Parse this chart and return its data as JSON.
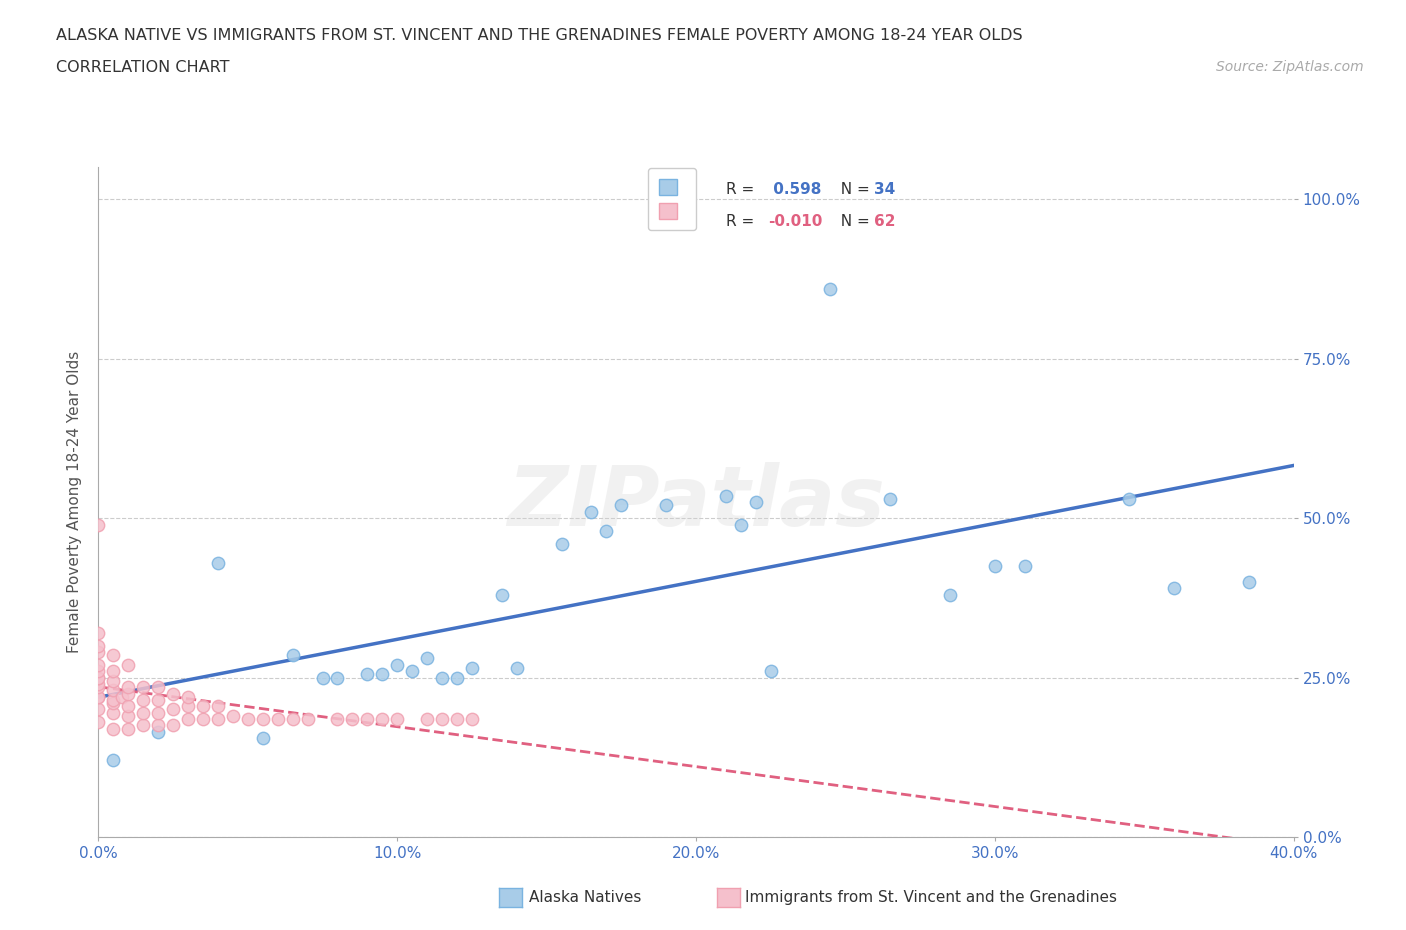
{
  "title_line1": "ALASKA NATIVE VS IMMIGRANTS FROM ST. VINCENT AND THE GRENADINES FEMALE POVERTY AMONG 18-24 YEAR OLDS",
  "title_line2": "CORRELATION CHART",
  "source_text": "Source: ZipAtlas.com",
  "xlim": [
    0.0,
    0.4
  ],
  "ylim": [
    0.0,
    1.05
  ],
  "ylabel": "Female Poverty Among 18-24 Year Olds",
  "alaska_R": 0.598,
  "alaska_N": 34,
  "immigrants_R": -0.01,
  "immigrants_N": 62,
  "alaska_scatter_color": "#a8cce8",
  "alaska_edge_color": "#7ab3e0",
  "immigrants_scatter_color": "#f5c0cc",
  "immigrants_edge_color": "#f0a0b0",
  "blue_line_color": "#4472C4",
  "pink_line_color": "#E06080",
  "watermark": "ZIPatlas",
  "background_color": "#ffffff",
  "grid_color": "#cccccc",
  "axis_tick_color": "#4472C4",
  "ylabel_color": "#555555",
  "alaska_scatter_x": [
    0.005,
    0.02,
    0.04,
    0.055,
    0.065,
    0.075,
    0.08,
    0.09,
    0.095,
    0.1,
    0.105,
    0.11,
    0.115,
    0.12,
    0.125,
    0.135,
    0.14,
    0.155,
    0.165,
    0.17,
    0.175,
    0.19,
    0.21,
    0.215,
    0.22,
    0.225,
    0.245,
    0.265,
    0.285,
    0.3,
    0.31,
    0.345,
    0.36,
    0.385
  ],
  "alaska_scatter_y": [
    0.12,
    0.165,
    0.43,
    0.155,
    0.285,
    0.25,
    0.25,
    0.255,
    0.255,
    0.27,
    0.26,
    0.28,
    0.25,
    0.25,
    0.265,
    0.38,
    0.265,
    0.46,
    0.51,
    0.48,
    0.52,
    0.52,
    0.535,
    0.49,
    0.525,
    0.26,
    0.86,
    0.53,
    0.38,
    0.425,
    0.425,
    0.53,
    0.39,
    0.4
  ],
  "immigrants_scatter_x": [
    0.0,
    0.0,
    0.0,
    0.0,
    0.0,
    0.0,
    0.0,
    0.0,
    0.0,
    0.0,
    0.0,
    0.0,
    0.0,
    0.0,
    0.005,
    0.005,
    0.005,
    0.005,
    0.005,
    0.005,
    0.005,
    0.005,
    0.008,
    0.01,
    0.01,
    0.01,
    0.01,
    0.01,
    0.01,
    0.015,
    0.015,
    0.015,
    0.015,
    0.02,
    0.02,
    0.02,
    0.02,
    0.025,
    0.025,
    0.025,
    0.03,
    0.03,
    0.03,
    0.035,
    0.035,
    0.04,
    0.04,
    0.045,
    0.05,
    0.055,
    0.06,
    0.065,
    0.07,
    0.08,
    0.085,
    0.09,
    0.095,
    0.1,
    0.11,
    0.115,
    0.12,
    0.125
  ],
  "immigrants_scatter_y": [
    0.18,
    0.2,
    0.22,
    0.22,
    0.235,
    0.24,
    0.25,
    0.25,
    0.26,
    0.27,
    0.29,
    0.3,
    0.32,
    0.49,
    0.17,
    0.195,
    0.21,
    0.215,
    0.23,
    0.245,
    0.26,
    0.285,
    0.22,
    0.17,
    0.19,
    0.205,
    0.225,
    0.235,
    0.27,
    0.175,
    0.195,
    0.215,
    0.235,
    0.175,
    0.195,
    0.215,
    0.235,
    0.175,
    0.2,
    0.225,
    0.185,
    0.205,
    0.22,
    0.185,
    0.205,
    0.185,
    0.205,
    0.19,
    0.185,
    0.185,
    0.185,
    0.185,
    0.185,
    0.185,
    0.185,
    0.185,
    0.185,
    0.185,
    0.185,
    0.185,
    0.185,
    0.185
  ]
}
